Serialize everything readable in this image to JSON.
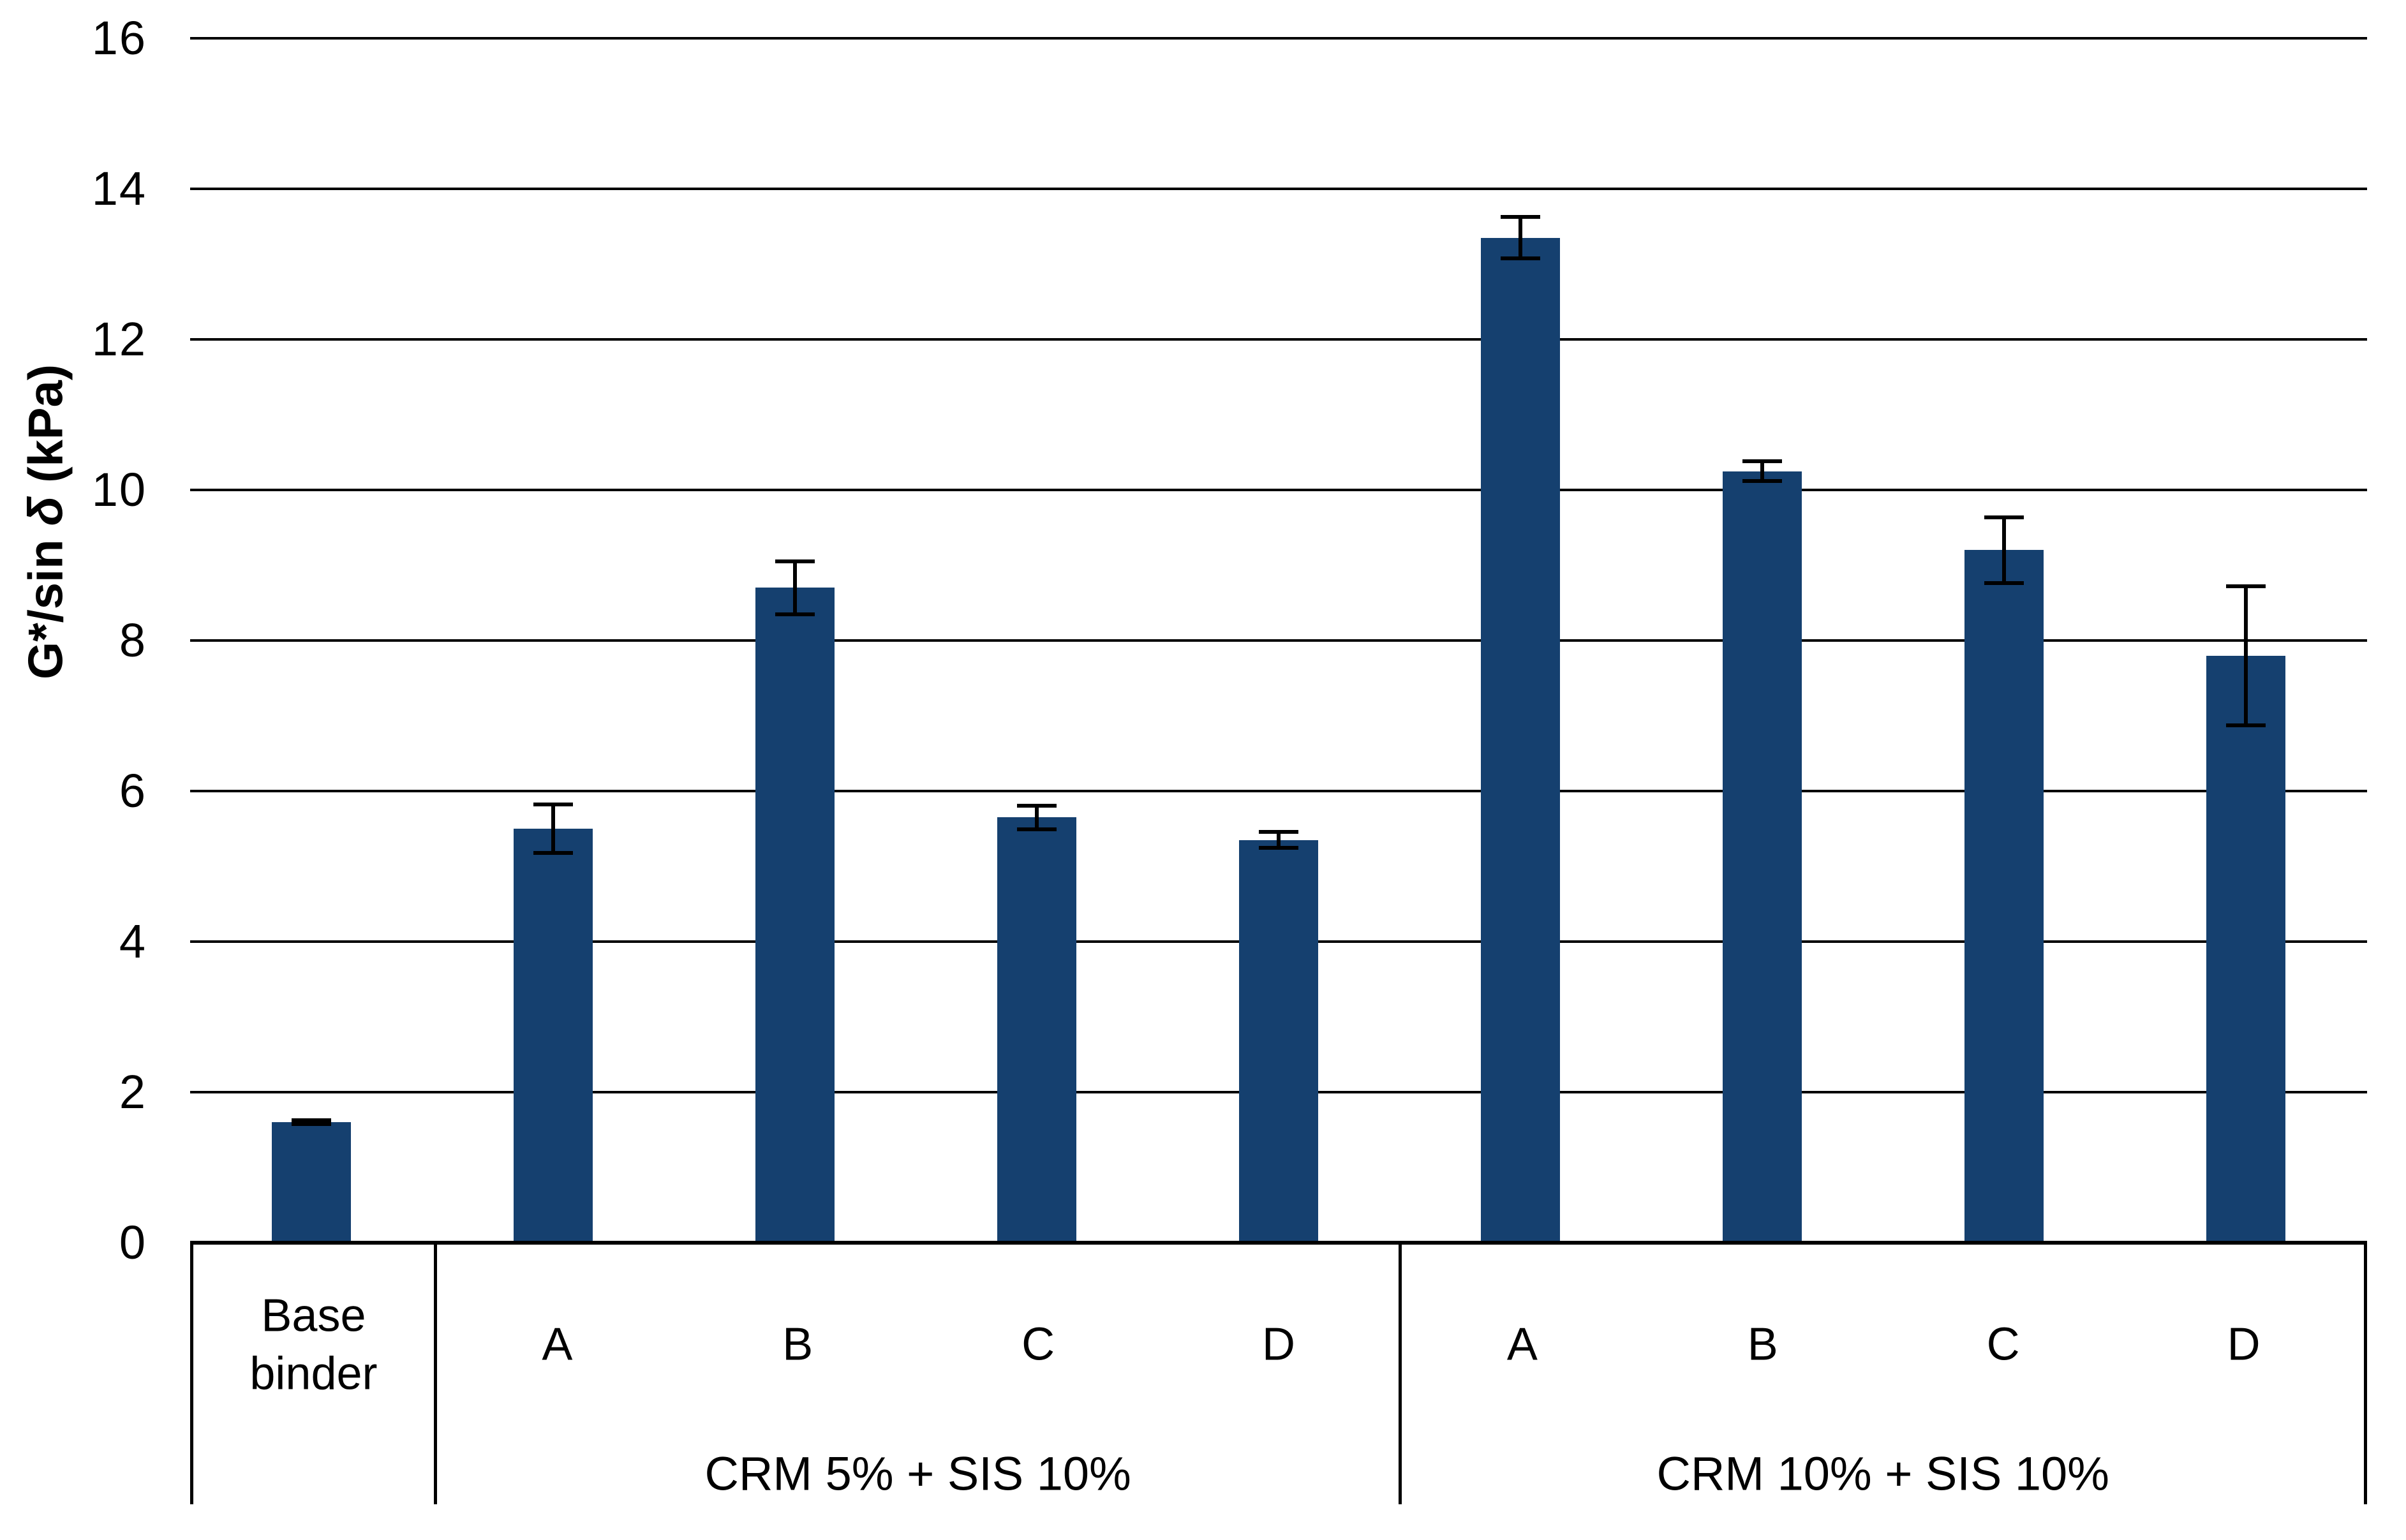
{
  "y_axis": {
    "label_prefix": "G*/sin ",
    "label_symbol": "δ",
    "label_suffix": " (kPa)"
  },
  "chart_data": {
    "type": "bar",
    "title": "",
    "xlabel": "",
    "ylabel": "G*/sin δ (kPa)",
    "ylim": [
      0,
      16
    ],
    "y_ticks": [
      0,
      2,
      4,
      6,
      8,
      10,
      12,
      14,
      16
    ],
    "grid": "horizontal",
    "legend": "none",
    "bar_color": "#15406f",
    "error_bar_color": "#000000",
    "groups": [
      {
        "label": "",
        "categories": [
          "Base binder"
        ],
        "values": [
          1.6
        ],
        "errors": [
          0.05
        ]
      },
      {
        "label": "CRM 5% + SIS 10%",
        "categories": [
          "A",
          "B",
          "C",
          "D"
        ],
        "values": [
          5.5,
          8.7,
          5.65,
          5.35
        ],
        "errors": [
          0.35,
          0.38,
          0.18,
          0.13
        ]
      },
      {
        "label": "CRM 10% + SIS 10%",
        "categories": [
          "A",
          "B",
          "C",
          "D"
        ],
        "values": [
          13.35,
          10.25,
          9.2,
          7.8
        ],
        "errors": [
          0.3,
          0.16,
          0.46,
          0.95
        ]
      }
    ]
  }
}
